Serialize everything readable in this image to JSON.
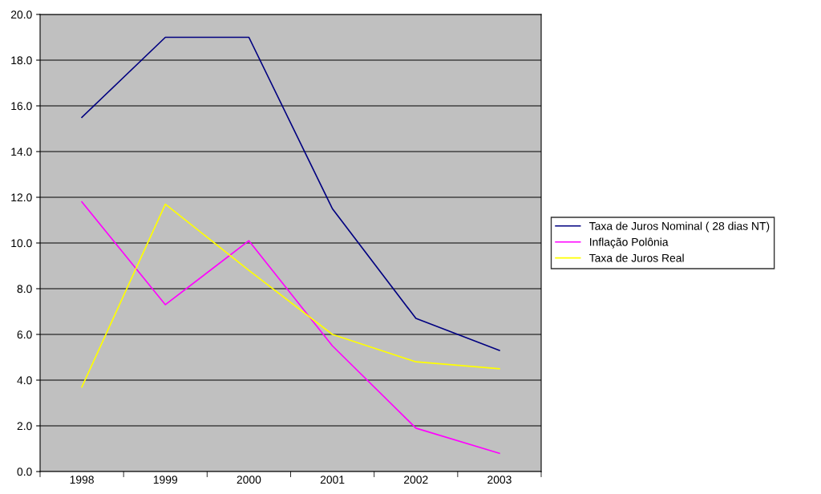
{
  "chart_data": {
    "type": "line",
    "categories": [
      "1998",
      "1999",
      "2000",
      "2001",
      "2002",
      "2003"
    ],
    "series": [
      {
        "name": "Taxa de Juros Nominal ( 28 dias NT)",
        "color": "#000080",
        "values": [
          15.5,
          19.0,
          19.0,
          11.5,
          6.7,
          5.3
        ]
      },
      {
        "name": "Inflação Polônia",
        "color": "#ff00ff",
        "values": [
          11.8,
          7.3,
          10.1,
          5.5,
          1.9,
          0.8
        ]
      },
      {
        "name": "Taxa de Juros Real",
        "color": "#ffff00",
        "values": [
          3.7,
          11.7,
          8.8,
          6.0,
          4.8,
          4.5
        ]
      }
    ],
    "ylim": [
      0,
      20
    ],
    "yticks": [
      {
        "value": 0,
        "label": "0.0"
      },
      {
        "value": 2,
        "label": "2.0"
      },
      {
        "value": 4,
        "label": "4.0"
      },
      {
        "value": 6,
        "label": "6.0"
      },
      {
        "value": 8,
        "label": "8.0"
      },
      {
        "value": 10,
        "label": "10.0"
      },
      {
        "value": 12,
        "label": "12.0"
      },
      {
        "value": 14,
        "label": "14.0"
      },
      {
        "value": 16,
        "label": "16.0"
      },
      {
        "value": 18,
        "label": "18.0"
      },
      {
        "value": 20,
        "label": "20.0"
      }
    ],
    "grid": "y",
    "legend": "right",
    "marker": "none",
    "line_style": "solid"
  }
}
